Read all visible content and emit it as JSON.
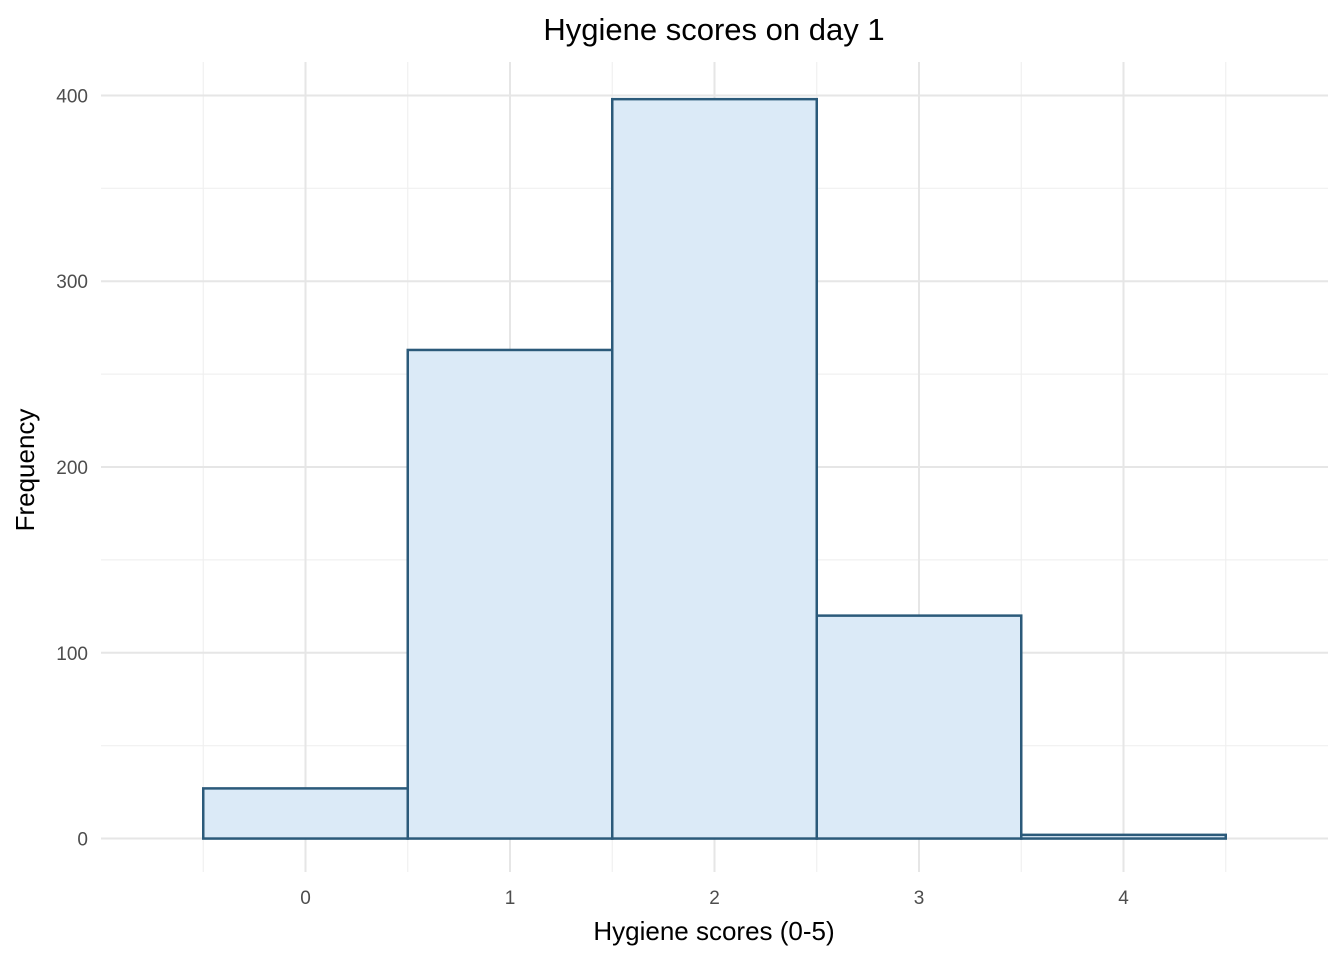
{
  "chart_data": {
    "type": "bar",
    "title": "Hygiene scores on day 1",
    "xlabel": "Hygiene scores (0-5)",
    "ylabel": "Frequency",
    "bins": [
      {
        "from": -0.5,
        "to": 0.5,
        "value": 27
      },
      {
        "from": 0.5,
        "to": 1.5,
        "value": 263
      },
      {
        "from": 1.5,
        "to": 2.5,
        "value": 398
      },
      {
        "from": 2.5,
        "to": 3.5,
        "value": 120
      },
      {
        "from": 3.5,
        "to": 4.5,
        "value": 2
      }
    ],
    "x_ticks": [
      "0",
      "1",
      "2",
      "3",
      "4"
    ],
    "y_ticks": [
      "0",
      "100",
      "200",
      "300",
      "400"
    ],
    "xlim": [
      -1,
      5
    ],
    "ylim": [
      -18,
      418
    ],
    "grid": true,
    "colors": {
      "fill": "#dbeaf7",
      "outline": "#2b5a7a"
    }
  }
}
